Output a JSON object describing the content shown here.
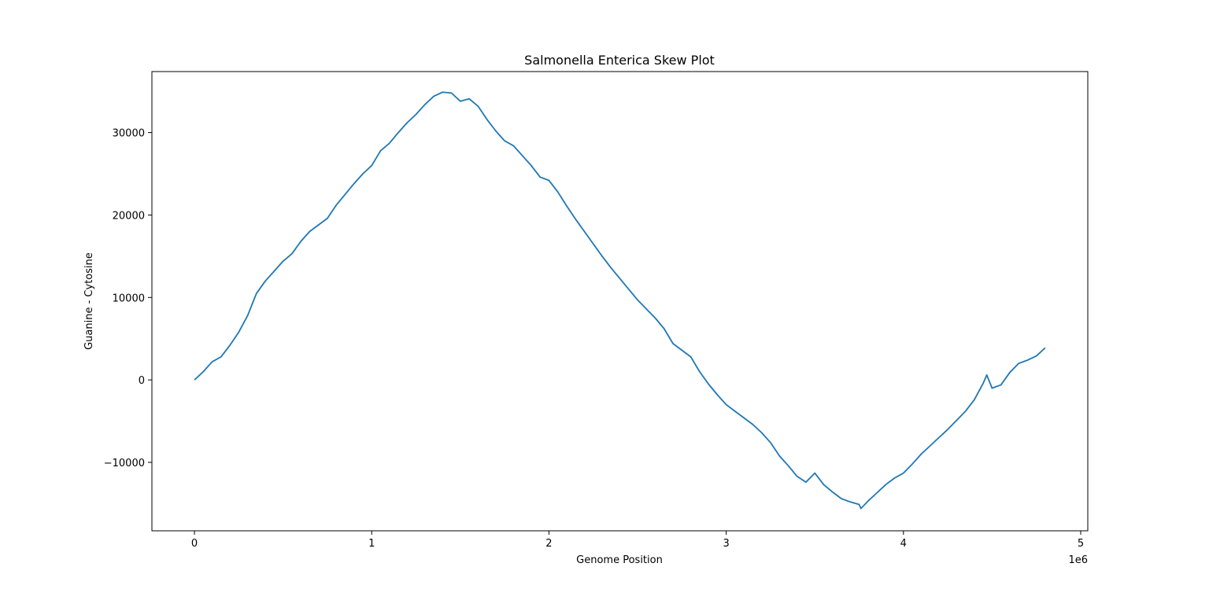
{
  "chart_data": {
    "type": "line",
    "title": "Salmonella Enterica Skew Plot",
    "xlabel": "Genome Position",
    "ylabel": "Guanine - Cytosine",
    "x_offset_text": "1e6",
    "xlim": [
      -0.24,
      5.04
    ],
    "ylim": [
      -18300,
      37400
    ],
    "x_scale_exponent": 6,
    "x_ticks": [
      0,
      1,
      2,
      3,
      4,
      5
    ],
    "x_tick_labels": [
      "0",
      "1",
      "2",
      "3",
      "4",
      "5"
    ],
    "y_ticks": [
      -10000,
      0,
      10000,
      20000,
      30000
    ],
    "y_tick_labels": [
      "−10000",
      "0",
      "10000",
      "20000",
      "30000"
    ],
    "grid": false,
    "line_color": "#1f77b4",
    "series": [
      {
        "x": [
          0,
          0.05,
          0.1,
          0.15,
          0.2,
          0.25,
          0.3,
          0.35,
          0.4,
          0.45,
          0.5,
          0.55,
          0.6,
          0.65,
          0.7,
          0.75,
          0.8,
          0.85,
          0.9,
          0.95,
          1.0,
          1.05,
          1.1,
          1.15,
          1.2,
          1.25,
          1.3,
          1.35,
          1.4,
          1.45,
          1.5,
          1.55,
          1.6,
          1.65,
          1.7,
          1.75,
          1.8,
          1.85,
          1.9,
          1.95,
          2.0,
          2.05,
          2.1,
          2.15,
          2.2,
          2.25,
          2.3,
          2.35,
          2.4,
          2.45,
          2.5,
          2.55,
          2.6,
          2.65,
          2.7,
          2.75,
          2.8,
          2.85,
          2.9,
          2.95,
          3.0,
          3.05,
          3.1,
          3.15,
          3.2,
          3.25,
          3.3,
          3.35,
          3.4,
          3.45,
          3.5,
          3.55,
          3.6,
          3.65,
          3.7,
          3.75,
          3.76,
          3.8,
          3.85,
          3.9,
          3.95,
          4.0,
          4.05,
          4.1,
          4.15,
          4.2,
          4.25,
          4.3,
          4.35,
          4.4,
          4.45,
          4.47,
          4.5,
          4.55,
          4.6,
          4.65,
          4.7,
          4.75,
          4.8
        ],
        "y": [
          0,
          1000,
          2200,
          2800,
          4200,
          5800,
          7800,
          10500,
          12000,
          13200,
          14400,
          15300,
          16800,
          18000,
          18800,
          19600,
          21200,
          22500,
          23800,
          25000,
          26000,
          27800,
          28700,
          30000,
          31200,
          32200,
          33400,
          34400,
          34900,
          34800,
          33800,
          34100,
          33200,
          31600,
          30200,
          29000,
          28400,
          27200,
          26000,
          24600,
          24200,
          22800,
          21100,
          19500,
          18000,
          16500,
          15000,
          13600,
          12300,
          11000,
          9700,
          8600,
          7500,
          6200,
          4400,
          3600,
          2800,
          1000,
          -500,
          -1800,
          -3000,
          -3800,
          -4600,
          -5400,
          -6400,
          -7600,
          -9200,
          -10400,
          -11700,
          -12400,
          -11300,
          -12700,
          -13600,
          -14400,
          -14800,
          -15100,
          -15600,
          -14700,
          -13700,
          -12700,
          -11900,
          -11300,
          -10200,
          -9000,
          -8000,
          -7000,
          -6000,
          -4900,
          -3800,
          -2400,
          -400,
          600,
          -1000,
          -600,
          900,
          2000,
          2400,
          2900,
          3900
        ]
      }
    ]
  }
}
